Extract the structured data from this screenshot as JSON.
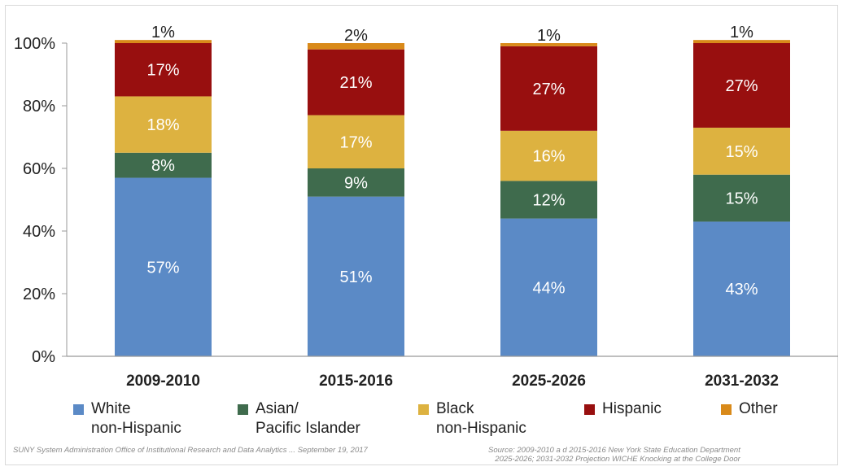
{
  "chart_data": {
    "type": "bar",
    "stacked": true,
    "categories": [
      "2009-2010",
      "2015-2016",
      "2025-2026",
      "2031-2032"
    ],
    "series": [
      {
        "name": "White\nnon-Hispanic",
        "color": "#5b8ac6",
        "values": [
          57,
          51,
          44,
          43
        ],
        "labels": [
          "57%",
          "51%",
          "44%",
          "43%"
        ]
      },
      {
        "name": "Asian/\nPacific Islander",
        "color": "#3f6b4d",
        "values": [
          8,
          9,
          12,
          15
        ],
        "labels": [
          "8%",
          "9%",
          "12%",
          "15%"
        ]
      },
      {
        "name": "Black\nnon-Hispanic",
        "color": "#ddb240",
        "values": [
          18,
          17,
          16,
          15
        ],
        "labels": [
          "18%",
          "17%",
          "16%",
          "15%"
        ]
      },
      {
        "name": "Hispanic",
        "color": "#980f0f",
        "values": [
          17,
          21,
          27,
          27
        ],
        "labels": [
          "17%",
          "21%",
          "27%",
          "27%"
        ]
      },
      {
        "name": "Other",
        "color": "#d98a1a",
        "values": [
          1,
          2,
          1,
          1
        ],
        "labels": [
          "1%",
          "2%",
          "1%",
          "1%"
        ]
      }
    ],
    "ylim": [
      0,
      100
    ],
    "yticks": [
      "0%",
      "20%",
      "40%",
      "60%",
      "80%",
      "100%"
    ],
    "grid": false,
    "legend_position": "bottom"
  },
  "footer": {
    "left": "SUNY System Administration Office of Institutional Research and Data Analytics ... September 19, 2017",
    "right": "Source:  2009-2010 a d 2015-2016 New York State Education Department\n2025-2026; 2031-2032 Projection WICHE Knocking at the College Door"
  }
}
